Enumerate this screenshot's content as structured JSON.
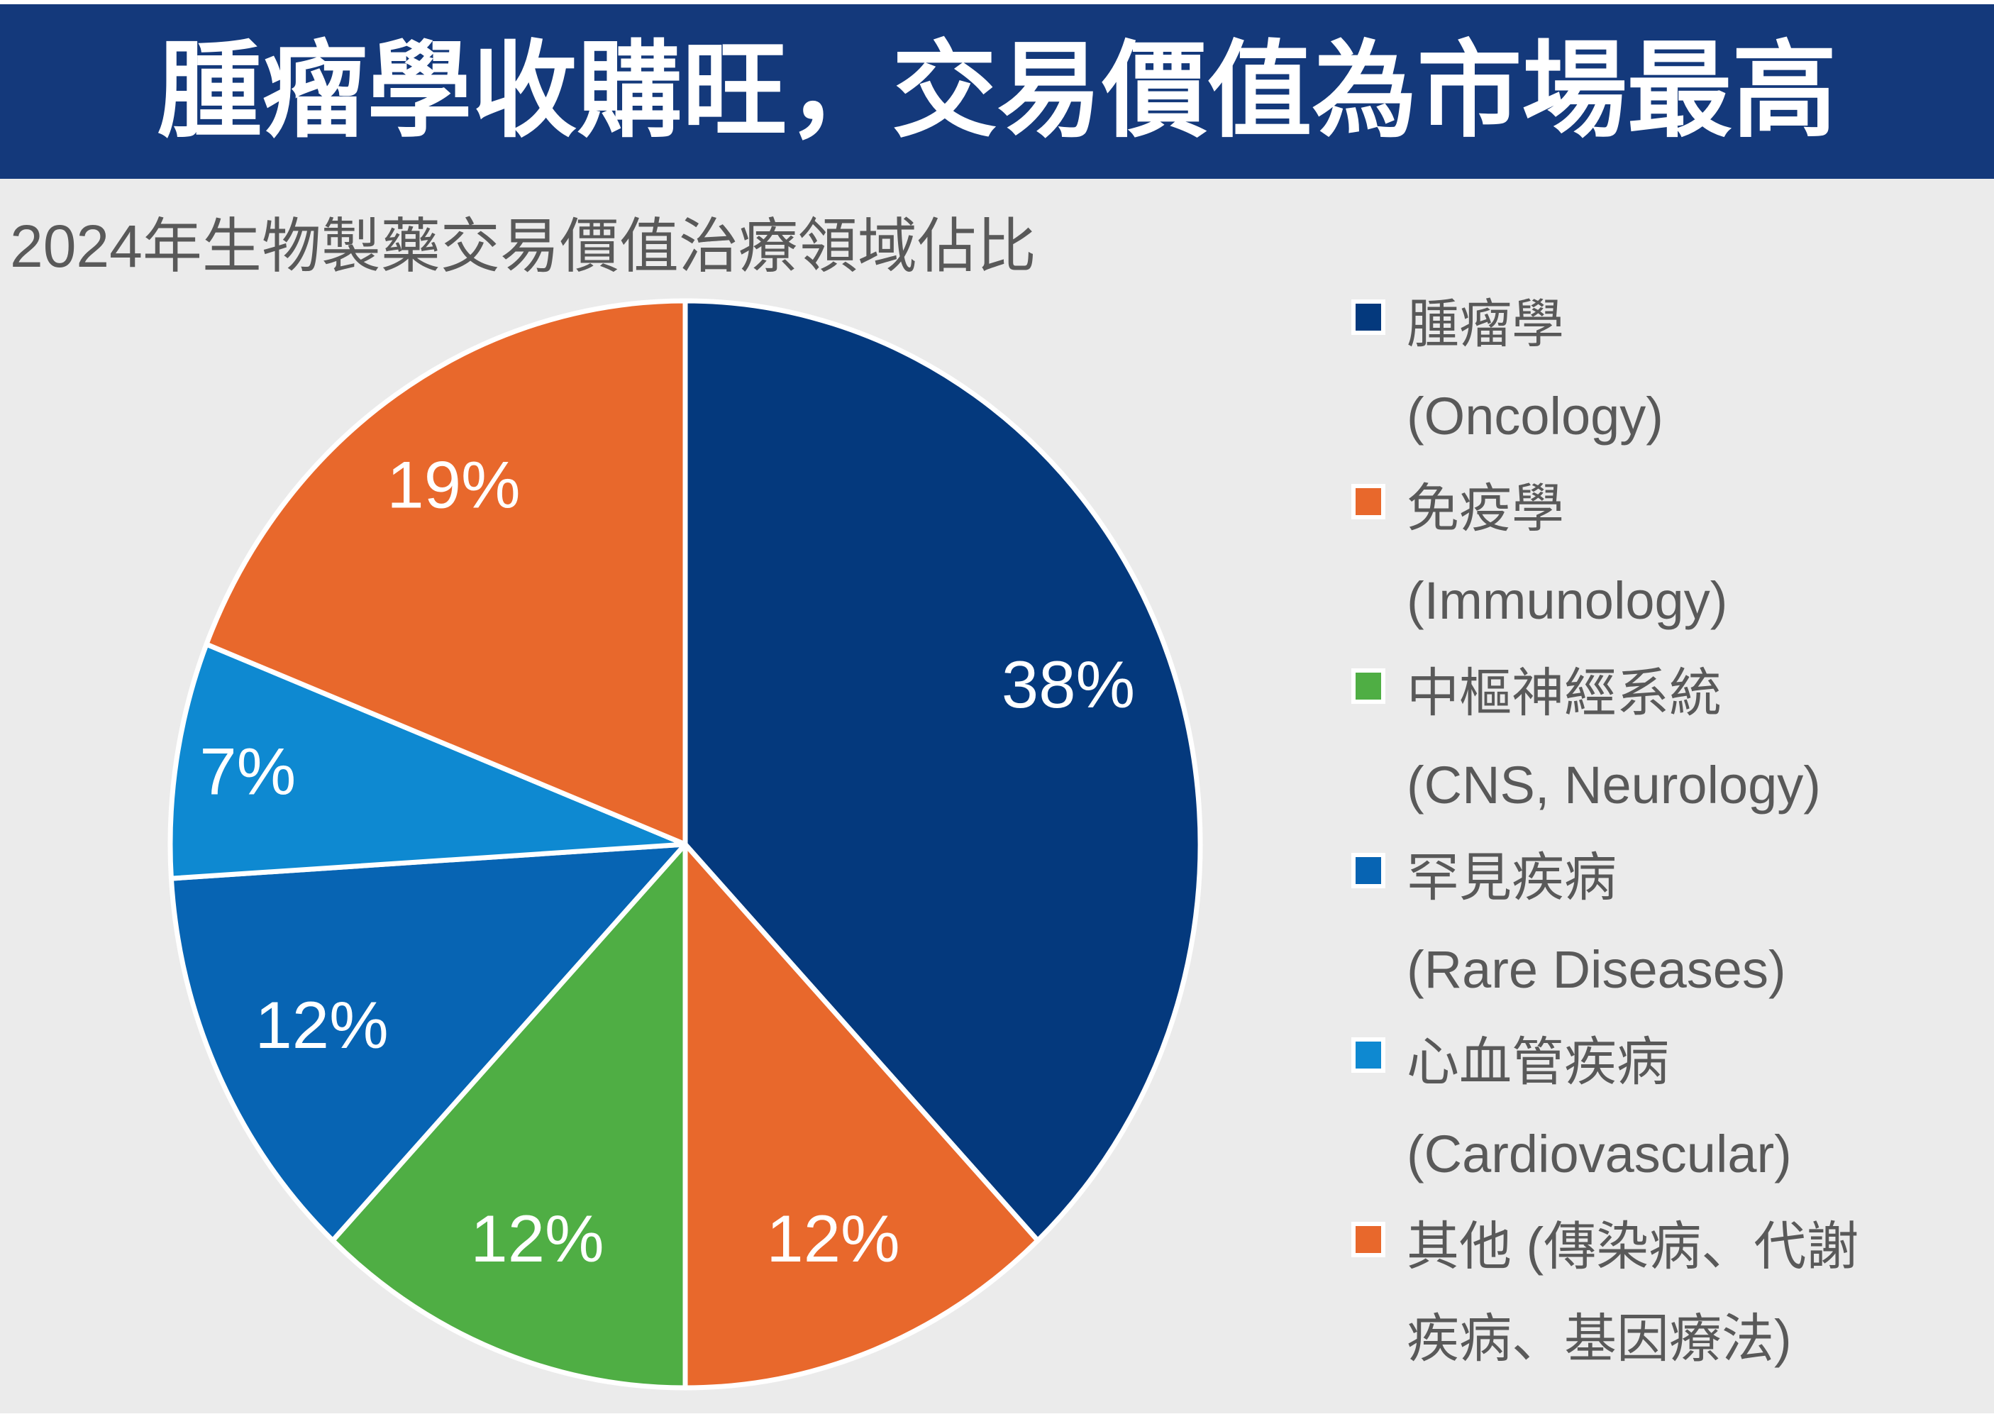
{
  "banner": {
    "title": "腫瘤學收購旺，交易價值為市場最高",
    "bg_color": "#14397B",
    "text_color": "#FFFFFF"
  },
  "chart_data": {
    "type": "pie",
    "title": "2024年生物製藥交易價值治療領域佔比",
    "direction": "clockwise",
    "start_angle_deg": 0,
    "categories": [
      "腫瘤學 (Oncology)",
      "免疫學 (Immunology)",
      "中樞神經系統 (CNS, Neurology)",
      "罕見疾病 (Rare Diseases)",
      "心血管疾病 (Cardiovascular)",
      "其他 (傳染病、代謝疾病、基因療法)"
    ],
    "values": [
      38,
      12,
      12,
      12,
      7,
      19
    ],
    "unit": "%",
    "data_labels": [
      "38%",
      "12%",
      "12%",
      "12%",
      "7%",
      "19%"
    ],
    "colors": [
      "#04397D",
      "#E8682C",
      "#4FAE44",
      "#0764B3",
      "#0E89D1",
      "#E8682C"
    ],
    "legend_position": "right",
    "slice_border_color": "#FFFFFF"
  },
  "legend": {
    "items": [
      {
        "id": "oncology",
        "color": "#04397D",
        "lines": [
          "腫瘤學",
          "(Oncology)"
        ]
      },
      {
        "id": "immunology",
        "color": "#E8682C",
        "lines": [
          "免疫學",
          "(Immunology)"
        ]
      },
      {
        "id": "cns-neurology",
        "color": "#4FAE44",
        "lines": [
          "中樞神經系統",
          "(CNS, Neurology)"
        ]
      },
      {
        "id": "rare-diseases",
        "color": "#0764B3",
        "lines": [
          "罕見疾病",
          "(Rare Diseases)"
        ]
      },
      {
        "id": "cardiovascular",
        "color": "#0E89D1",
        "lines": [
          "心血管疾病",
          "(Cardiovascular)"
        ]
      },
      {
        "id": "others",
        "color": "#E8682C",
        "lines": [
          "其他 (傳染病、代謝",
          "疾病、基因療法)"
        ]
      }
    ]
  },
  "style": {
    "page_bg": "#FFFFFF",
    "content_bg": "#EBEBEB",
    "subtitle_color": "#595959",
    "legend_text_color": "#595959",
    "data_label_color": "#FFFFFF"
  }
}
